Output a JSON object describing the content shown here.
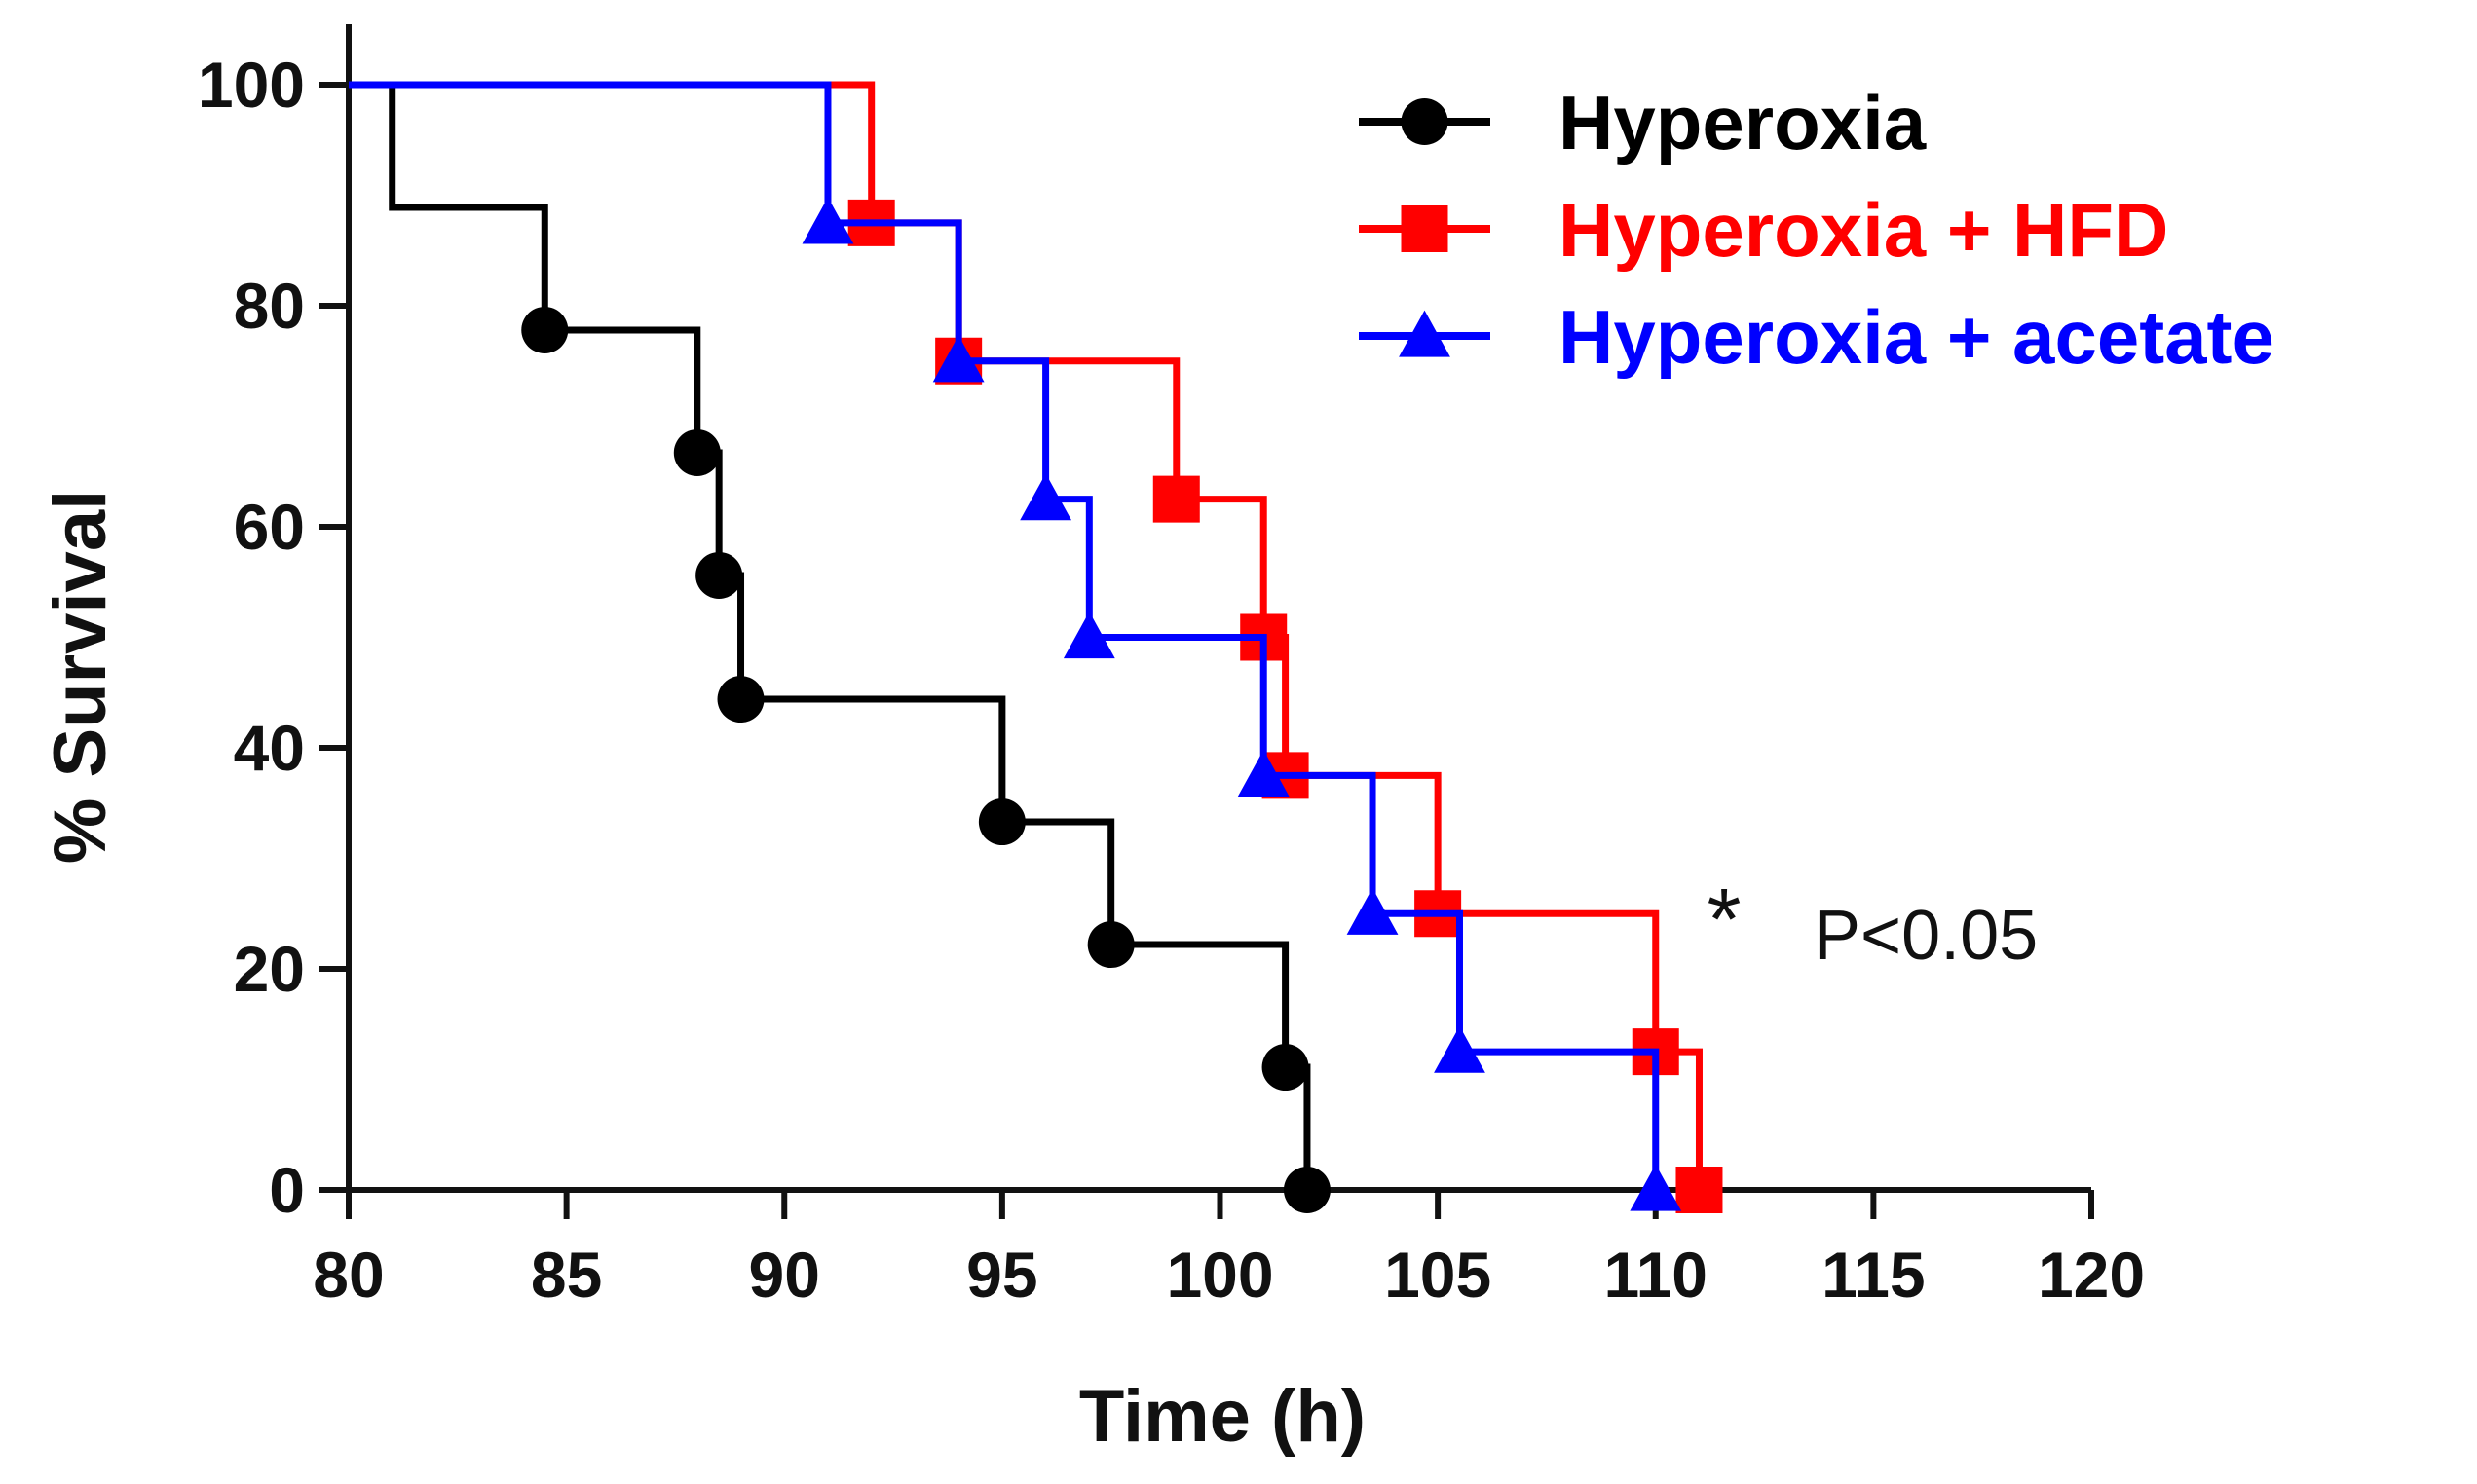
{
  "chart_data": {
    "type": "line",
    "subtype": "kaplan-meier",
    "title": "",
    "xlabel": "Time (h)",
    "ylabel": "% Survival",
    "xlim": [
      80,
      120
    ],
    "ylim": [
      0,
      100
    ],
    "xticks": [
      80,
      85,
      90,
      95,
      100,
      105,
      110,
      115,
      120
    ],
    "yticks": [
      0,
      20,
      40,
      60,
      80,
      100
    ],
    "legend_position": "top-right",
    "series": [
      {
        "name": "Hyperoxia",
        "color": "#000000",
        "marker": "circle",
        "steps": [
          [
            80,
            100
          ],
          [
            81,
            88.9
          ],
          [
            84.5,
            77.8
          ],
          [
            88,
            66.7
          ],
          [
            88.5,
            55.6
          ],
          [
            89,
            44.4
          ],
          [
            95,
            33.3
          ],
          [
            97.5,
            22.2
          ],
          [
            101.5,
            11.1
          ],
          [
            102,
            0
          ]
        ],
        "markers": [
          [
            84.5,
            77.8
          ],
          [
            88,
            66.7
          ],
          [
            88.5,
            55.6
          ],
          [
            89,
            44.4
          ],
          [
            95,
            33.3
          ],
          [
            97.5,
            22.2
          ],
          [
            101.5,
            11.1
          ],
          [
            102,
            0
          ]
        ]
      },
      {
        "name": "Hyperoxia + HFD",
        "color": "#ff0000",
        "marker": "square",
        "steps": [
          [
            91,
            100
          ],
          [
            92,
            87.5
          ],
          [
            94,
            75
          ],
          [
            99,
            62.5
          ],
          [
            101,
            50
          ],
          [
            101.5,
            37.5
          ],
          [
            105,
            25
          ],
          [
            110,
            12.5
          ],
          [
            111,
            0
          ]
        ],
        "markers": [
          [
            92,
            87.5
          ],
          [
            94,
            75
          ],
          [
            99,
            62.5
          ],
          [
            101,
            50
          ],
          [
            101.5,
            37.5
          ],
          [
            105,
            25
          ],
          [
            110,
            12.5
          ],
          [
            111,
            0
          ]
        ]
      },
      {
        "name": "Hyperoxia + acetate",
        "color": "#0000ff",
        "marker": "triangle",
        "steps": [
          [
            80,
            100
          ],
          [
            91,
            87.5
          ],
          [
            94,
            75
          ],
          [
            96,
            62.5
          ],
          [
            97,
            50
          ],
          [
            101,
            37.5
          ],
          [
            103.5,
            25
          ],
          [
            105.5,
            12.5
          ],
          [
            110,
            0
          ]
        ],
        "markers": [
          [
            91,
            87.5
          ],
          [
            94,
            75
          ],
          [
            96,
            62.5
          ],
          [
            97,
            50
          ],
          [
            101,
            37.5
          ],
          [
            103.5,
            25
          ],
          [
            105.5,
            12.5
          ],
          [
            110,
            0
          ]
        ]
      }
    ],
    "annotations": {
      "star": "*",
      "pvalue": "P<0.05"
    }
  }
}
